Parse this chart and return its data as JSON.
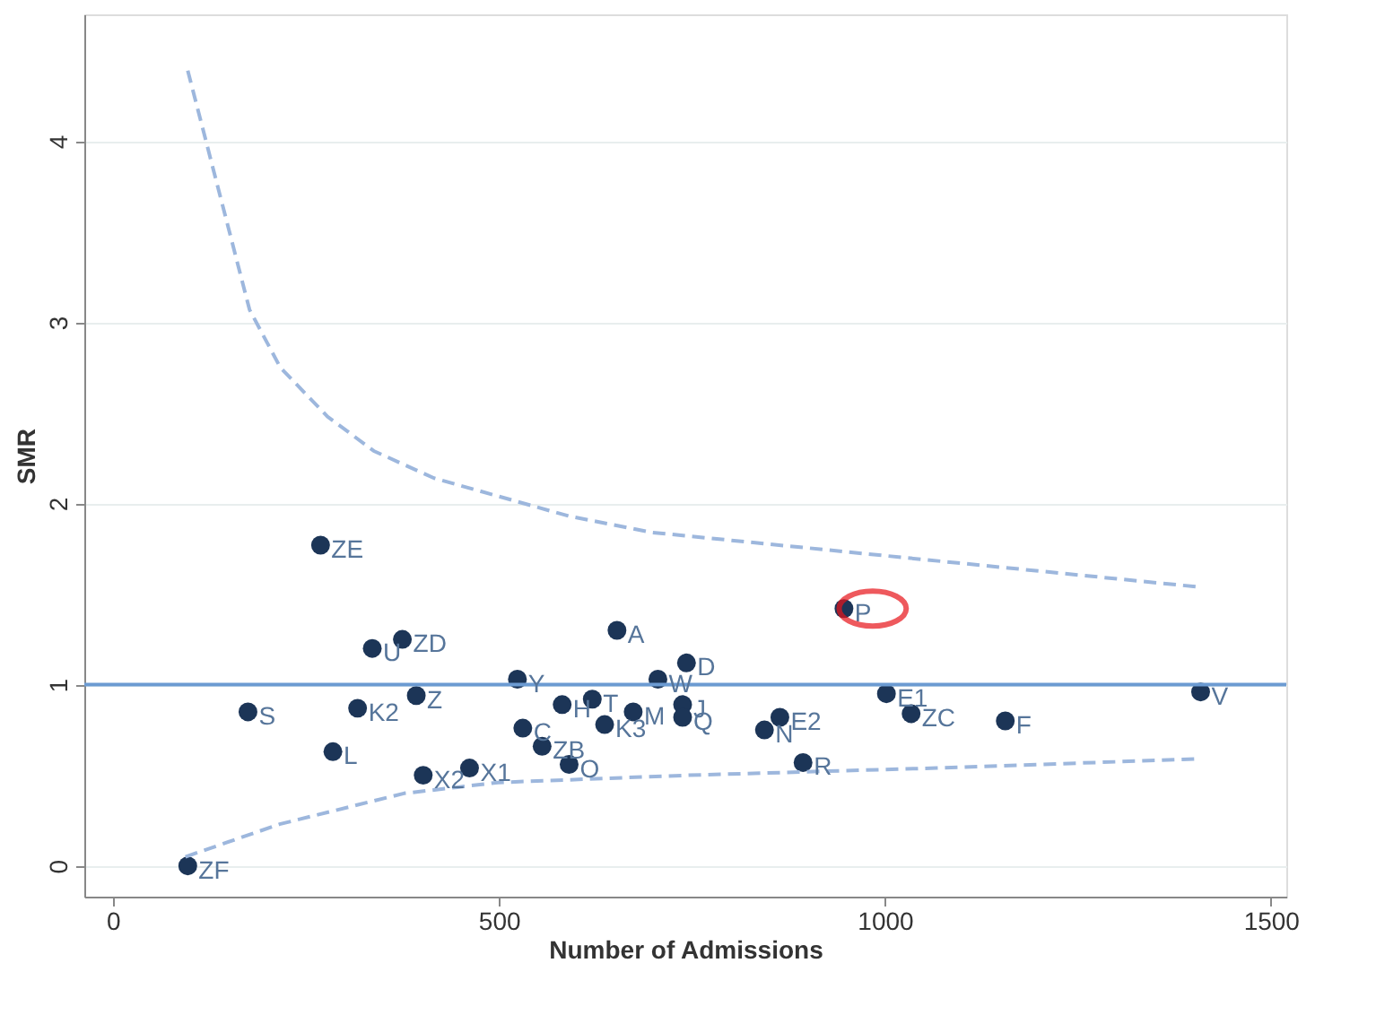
{
  "chart_data": {
    "type": "scatter",
    "xlabel": "Number of Admissions",
    "ylabel": "SMR",
    "xlim": [
      -37,
      1520
    ],
    "ylim": [
      -0.17,
      4.7
    ],
    "xticks": [
      0,
      500,
      1000,
      1500
    ],
    "yticks": [
      0,
      1,
      2,
      3,
      4
    ],
    "grid": "y",
    "marker": "circle",
    "series": [
      {
        "color": "#1c3557",
        "x": [
          97,
          175,
          269,
          285,
          336,
          317,
          375,
          393,
          402,
          462,
          524,
          531,
          556,
          582,
          621,
          591,
          637,
          653,
          674,
          706,
          743,
          738,
          738,
          947,
          864,
          844,
          894,
          1002,
          1034,
          1156,
          1409
        ],
        "values": [
          0,
          0.85,
          1.77,
          0.63,
          1.2,
          0.87,
          1.25,
          0.94,
          0.5,
          0.54,
          1.03,
          0.76,
          0.66,
          0.89,
          0.92,
          0.56,
          0.78,
          1.3,
          0.85,
          1.03,
          1.12,
          0.89,
          0.82,
          1.42,
          0.82,
          0.75,
          0.57,
          0.95,
          0.84,
          0.8,
          0.96
        ]
      },
      {
        "type": "line",
        "color": "#9db7dd",
        "line_style": "dashed",
        "marker": "none",
        "x": [
          97,
          177,
          217,
          278,
          338,
          416,
          591,
          699,
          1405
        ],
        "values": [
          4.39,
          3.07,
          2.75,
          2.48,
          2.29,
          2.14,
          1.93,
          1.84,
          1.54
        ]
      },
      {
        "type": "line",
        "color": "#9db7dd",
        "line_style": "dashed",
        "marker": "none",
        "x": [
          94,
          216,
          377,
          499,
          745,
          1067,
          1405
        ],
        "values": [
          0.05,
          0.23,
          0.4,
          0.46,
          0.5,
          0.54,
          0.59
        ]
      }
    ],
    "ref_lines": [
      {
        "axis": "y",
        "value": 1,
        "color": "#6c9bd2",
        "line_style": "solid"
      }
    ],
    "annotations": [
      {
        "text": "ZF",
        "x": 97,
        "y": 0
      },
      {
        "text": "S",
        "x": 175,
        "y": 0.85
      },
      {
        "text": "ZE",
        "x": 269,
        "y": 1.77
      },
      {
        "text": "L",
        "x": 285,
        "y": 0.63
      },
      {
        "text": "U",
        "x": 336,
        "y": 1.2
      },
      {
        "text": "K2",
        "x": 317,
        "y": 0.87
      },
      {
        "text": "ZD",
        "x": 375,
        "y": 1.25
      },
      {
        "text": "Z",
        "x": 393,
        "y": 0.94
      },
      {
        "text": "X2",
        "x": 402,
        "y": 0.5
      },
      {
        "text": "X1",
        "x": 462,
        "y": 0.54
      },
      {
        "text": "Y",
        "x": 524,
        "y": 1.03
      },
      {
        "text": "C",
        "x": 531,
        "y": 0.76
      },
      {
        "text": "ZB",
        "x": 556,
        "y": 0.66
      },
      {
        "text": "H",
        "x": 582,
        "y": 0.89
      },
      {
        "text": "T",
        "x": 621,
        "y": 0.92
      },
      {
        "text": "O",
        "x": 591,
        "y": 0.56
      },
      {
        "text": "K3",
        "x": 637,
        "y": 0.78
      },
      {
        "text": "A",
        "x": 653,
        "y": 1.3
      },
      {
        "text": "M",
        "x": 674,
        "y": 0.85
      },
      {
        "text": "W",
        "x": 706,
        "y": 1.03
      },
      {
        "text": "D",
        "x": 743,
        "y": 1.12
      },
      {
        "text": "J",
        "x": 738,
        "y": 0.89
      },
      {
        "text": "Q",
        "x": 738,
        "y": 0.82
      },
      {
        "text": "P",
        "x": 947,
        "y": 1.42
      },
      {
        "text": "E2",
        "x": 864,
        "y": 0.82
      },
      {
        "text": "N",
        "x": 844,
        "y": 0.75
      },
      {
        "text": "R",
        "x": 894,
        "y": 0.57
      },
      {
        "text": "E1",
        "x": 1002,
        "y": 0.95
      },
      {
        "text": "ZC",
        "x": 1034,
        "y": 0.84
      },
      {
        "text": "F",
        "x": 1156,
        "y": 0.8
      },
      {
        "text": "V",
        "x": 1409,
        "y": 0.96
      }
    ]
  }
}
